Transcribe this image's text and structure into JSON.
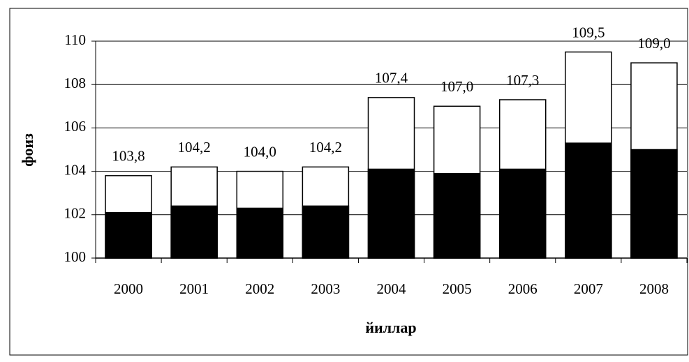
{
  "chart_data": {
    "type": "bar",
    "x_label": "йиллар",
    "y_label": "фоиз",
    "categories": [
      "2000",
      "2001",
      "2002",
      "2003",
      "2004",
      "2005",
      "2006",
      "2007",
      "2008"
    ],
    "series": [
      {
        "color": "#000000",
        "values": [
          102.1,
          102.4,
          102.3,
          102.4,
          104.1,
          103.9,
          104.1,
          105.3,
          105.0
        ]
      },
      {
        "color": "#ffffff",
        "values": [
          103.8,
          104.2,
          104.0,
          104.2,
          107.4,
          107.0,
          107.3,
          109.5,
          109.0
        ],
        "value_labels": [
          "103,8",
          "104,2",
          "104,0",
          "104,2",
          "107,4",
          "107,0",
          "107,3",
          "109,5",
          "109,0"
        ]
      }
    ],
    "ylim": [
      100,
      110
    ],
    "yticks": [
      100,
      102,
      104,
      106,
      108,
      110
    ],
    "grid": true
  }
}
